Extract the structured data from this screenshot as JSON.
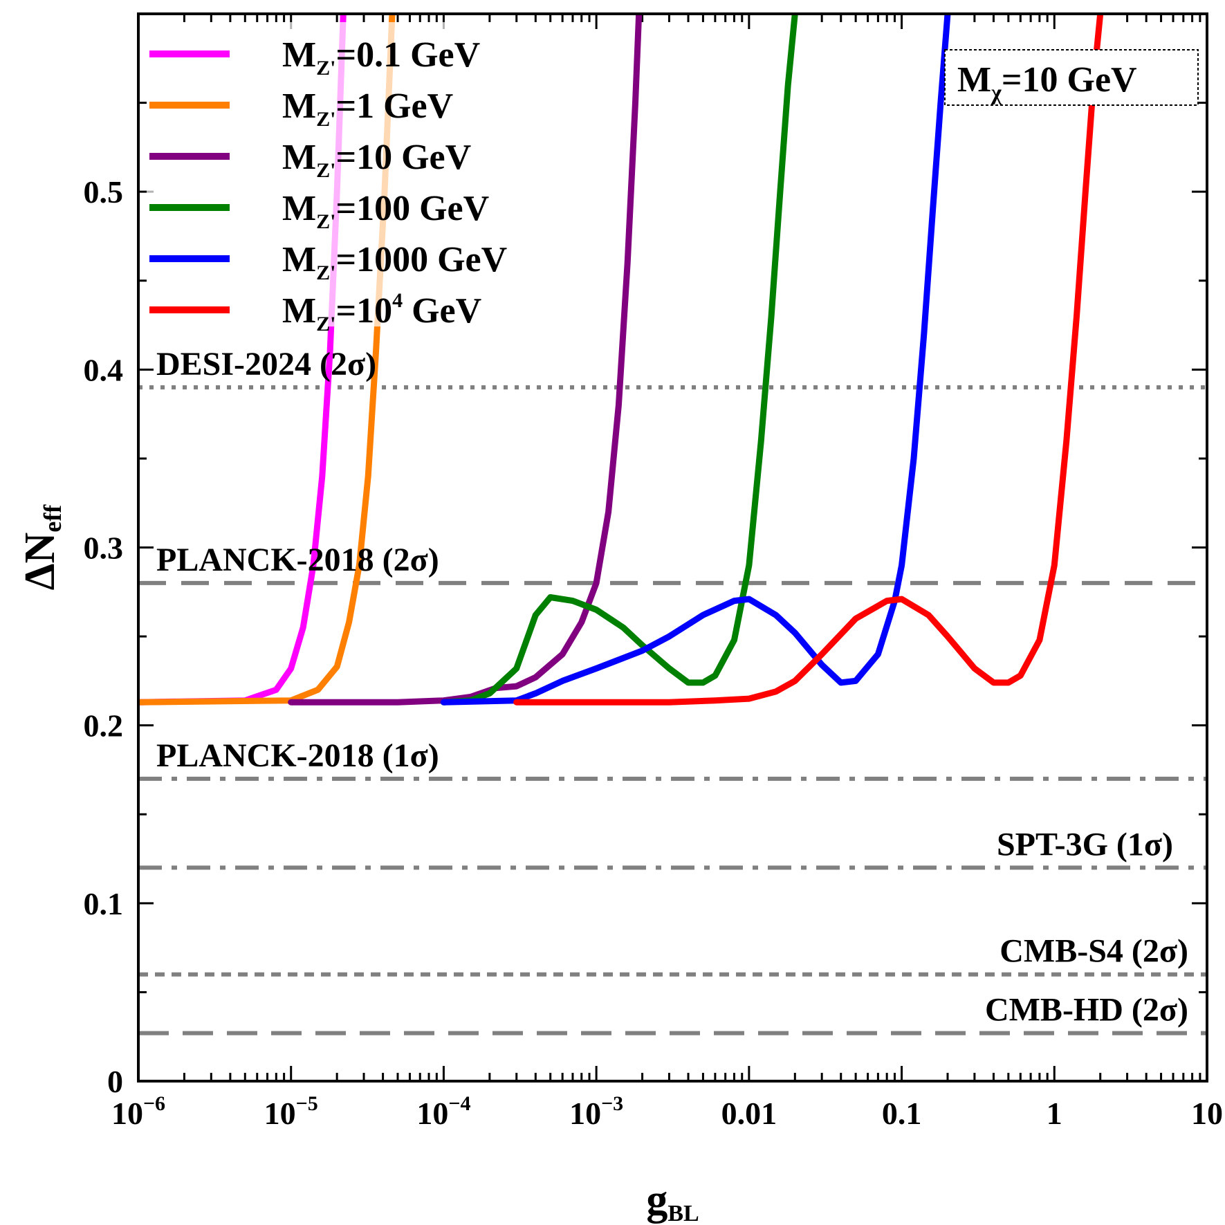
{
  "chart_data": {
    "type": "line",
    "xscale": "log",
    "xlim": [
      1e-06,
      10
    ],
    "ylim": [
      0,
      0.6
    ],
    "xlabel": {
      "main": "g",
      "sub": "BL"
    },
    "ylabel": {
      "main": "ΔN",
      "sub": "eff"
    },
    "x_ticks": [
      {
        "value": 1e-06,
        "base": "10",
        "exp": "−6"
      },
      {
        "value": 1e-05,
        "base": "10",
        "exp": "−5"
      },
      {
        "value": 0.0001,
        "base": "10",
        "exp": "−4"
      },
      {
        "value": 0.001,
        "base": "10",
        "exp": "−3"
      },
      {
        "value": 0.01,
        "label": "0.01"
      },
      {
        "value": 0.1,
        "label": "0.1"
      },
      {
        "value": 1,
        "label": "1"
      },
      {
        "value": 10,
        "label": "10"
      }
    ],
    "y_ticks": [
      {
        "value": 0,
        "label": "0"
      },
      {
        "value": 0.1,
        "label": "0.1"
      },
      {
        "value": 0.2,
        "label": "0.2"
      },
      {
        "value": 0.3,
        "label": "0.3"
      },
      {
        "value": 0.4,
        "label": "0.4"
      },
      {
        "value": 0.5,
        "label": "0.5"
      }
    ],
    "legend_position": "top-left",
    "annotation": {
      "main": "M",
      "sub": "χ",
      "rest": "=10 GeV"
    },
    "series": [
      {
        "name": "MZ'=0.1 GeV",
        "legend": {
          "main": "M",
          "sub": "Z'",
          "rest": "=0.1 GeV"
        },
        "color": "#ff00ff",
        "points": [
          [
            1e-06,
            0.213
          ],
          [
            5e-06,
            0.214
          ],
          [
            8e-06,
            0.22
          ],
          [
            1e-05,
            0.232
          ],
          [
            1.2e-05,
            0.255
          ],
          [
            1.4e-05,
            0.29
          ],
          [
            1.6e-05,
            0.34
          ],
          [
            1.8e-05,
            0.41
          ],
          [
            2e-05,
            0.5
          ],
          [
            2.2e-05,
            0.6
          ]
        ]
      },
      {
        "name": "MZ'=1 GeV",
        "legend": {
          "main": "M",
          "sub": "Z'",
          "rest": "=1 GeV"
        },
        "color": "#ff8000",
        "points": [
          [
            1e-06,
            0.213
          ],
          [
            1e-05,
            0.214
          ],
          [
            1.5e-05,
            0.22
          ],
          [
            2e-05,
            0.233
          ],
          [
            2.4e-05,
            0.258
          ],
          [
            2.8e-05,
            0.29
          ],
          [
            3.2e-05,
            0.34
          ],
          [
            3.6e-05,
            0.41
          ],
          [
            4.1e-05,
            0.5
          ],
          [
            4.6e-05,
            0.6
          ]
        ]
      },
      {
        "name": "MZ'=10 GeV",
        "legend": {
          "main": "M",
          "sub": "Z'",
          "rest": "=10 GeV"
        },
        "color": "#800080",
        "points": [
          [
            1e-05,
            0.213
          ],
          [
            5e-05,
            0.213
          ],
          [
            0.0001,
            0.214
          ],
          [
            0.00015,
            0.216
          ],
          [
            0.00022,
            0.221
          ],
          [
            0.0003,
            0.222
          ],
          [
            0.0004,
            0.227
          ],
          [
            0.0006,
            0.24
          ],
          [
            0.0008,
            0.258
          ],
          [
            0.001,
            0.28
          ],
          [
            0.0012,
            0.32
          ],
          [
            0.0014,
            0.38
          ],
          [
            0.0016,
            0.46
          ],
          [
            0.0018,
            0.55
          ],
          [
            0.0019,
            0.6
          ]
        ]
      },
      {
        "name": "MZ'=100 GeV",
        "legend": {
          "main": "M",
          "sub": "Z'",
          "rest": "=100 GeV"
        },
        "color": "#008000",
        "points": [
          [
            0.0001,
            0.213
          ],
          [
            0.00015,
            0.214
          ],
          [
            0.0002,
            0.218
          ],
          [
            0.0003,
            0.232
          ],
          [
            0.0004,
            0.262
          ],
          [
            0.0005,
            0.272
          ],
          [
            0.0007,
            0.27
          ],
          [
            0.001,
            0.265
          ],
          [
            0.0015,
            0.255
          ],
          [
            0.002,
            0.245
          ],
          [
            0.003,
            0.232
          ],
          [
            0.004,
            0.224
          ],
          [
            0.005,
            0.224
          ],
          [
            0.006,
            0.228
          ],
          [
            0.008,
            0.248
          ],
          [
            0.01,
            0.29
          ],
          [
            0.012,
            0.36
          ],
          [
            0.014,
            0.43
          ],
          [
            0.016,
            0.5
          ],
          [
            0.018,
            0.56
          ],
          [
            0.02,
            0.6
          ]
        ]
      },
      {
        "name": "MZ'=1000 GeV",
        "legend": {
          "main": "M",
          "sub": "Z'",
          "rest": "=1000 GeV"
        },
        "color": "#0000ff",
        "points": [
          [
            0.0001,
            0.213
          ],
          [
            0.0003,
            0.214
          ],
          [
            0.0004,
            0.218
          ],
          [
            0.0006,
            0.225
          ],
          [
            0.001,
            0.232
          ],
          [
            0.002,
            0.242
          ],
          [
            0.003,
            0.25
          ],
          [
            0.005,
            0.262
          ],
          [
            0.008,
            0.27
          ],
          [
            0.01,
            0.271
          ],
          [
            0.015,
            0.262
          ],
          [
            0.02,
            0.252
          ],
          [
            0.03,
            0.234
          ],
          [
            0.04,
            0.224
          ],
          [
            0.05,
            0.225
          ],
          [
            0.07,
            0.24
          ],
          [
            0.09,
            0.27
          ],
          [
            0.1,
            0.29
          ],
          [
            0.12,
            0.35
          ],
          [
            0.14,
            0.42
          ],
          [
            0.16,
            0.49
          ],
          [
            0.18,
            0.55
          ],
          [
            0.2,
            0.6
          ]
        ]
      },
      {
        "name": "MZ'=10^4 GeV",
        "legend": {
          "main": "M",
          "sub": "Z'",
          "rest": "=10",
          "sup": "4",
          "after": " GeV"
        },
        "color": "#ff0000",
        "points": [
          [
            0.0003,
            0.213
          ],
          [
            0.001,
            0.213
          ],
          [
            0.003,
            0.213
          ],
          [
            0.006,
            0.214
          ],
          [
            0.01,
            0.215
          ],
          [
            0.015,
            0.219
          ],
          [
            0.02,
            0.225
          ],
          [
            0.03,
            0.24
          ],
          [
            0.05,
            0.26
          ],
          [
            0.08,
            0.27
          ],
          [
            0.1,
            0.271
          ],
          [
            0.15,
            0.262
          ],
          [
            0.2,
            0.25
          ],
          [
            0.3,
            0.232
          ],
          [
            0.4,
            0.224
          ],
          [
            0.5,
            0.224
          ],
          [
            0.6,
            0.228
          ],
          [
            0.8,
            0.248
          ],
          [
            1,
            0.29
          ],
          [
            1.2,
            0.36
          ],
          [
            1.4,
            0.43
          ],
          [
            1.6,
            0.5
          ],
          [
            1.8,
            0.56
          ],
          [
            2,
            0.6
          ]
        ]
      }
    ],
    "reference_lines": [
      {
        "label": "DESI-2024 (2σ)",
        "value": 0.39,
        "style": "dotted",
        "label_anchor": "left"
      },
      {
        "label": "PLANCK-2018 (2σ)",
        "value": 0.28,
        "style": "dashed",
        "label_anchor": "left"
      },
      {
        "label": "PLANCK-2018 (1σ)",
        "value": 0.17,
        "style": "dash-dot",
        "label_anchor": "left"
      },
      {
        "label": "SPT-3G (1σ)",
        "value": 0.12,
        "style": "dash-dot",
        "label_anchor": "right"
      },
      {
        "label": "CMB-S4 (2σ)",
        "value": 0.06,
        "style": "short-dashed",
        "label_anchor": "right"
      },
      {
        "label": "CMB-HD (2σ)",
        "value": 0.027,
        "style": "long-dashed",
        "label_anchor": "right"
      }
    ],
    "grid": false
  }
}
